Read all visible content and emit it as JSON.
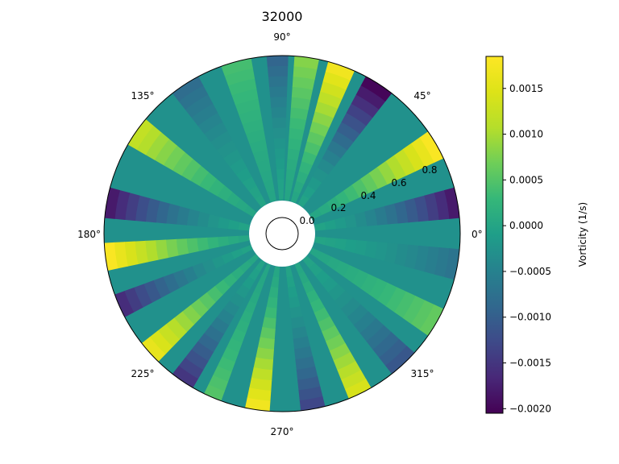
{
  "chart_data": {
    "type": "polar-heatmap",
    "title": "32000",
    "angle_ticks": [
      "0°",
      "45°",
      "90°",
      "135°",
      "180°",
      "225°",
      "270°",
      "315°"
    ],
    "radial_ticks": [
      "0.0",
      "0.2",
      "0.4",
      "0.6",
      "0.8"
    ],
    "rlim": [
      0.0,
      0.85
    ],
    "inner_hole_radius": 0.16,
    "colorbar": {
      "label": "Vorticity (1/s)",
      "ticks": [
        "0.0015",
        "0.0010",
        "0.0005",
        "0.0000",
        "−0.0005",
        "−0.0010",
        "−0.0015",
        "−0.0020"
      ],
      "tick_values": [
        0.0015,
        0.001,
        0.0005,
        0.0,
        -0.0005,
        -0.001,
        -0.0015,
        -0.002
      ],
      "vmin": -0.00205,
      "vmax": 0.00185,
      "colormap": "viridis"
    },
    "sectors": [
      {
        "start": 5,
        "end": 15,
        "value": -0.0018
      },
      {
        "start": 25,
        "end": 35,
        "value": 0.0018
      },
      {
        "start": 52,
        "end": 62,
        "value": -0.002
      },
      {
        "start": 66,
        "end": 75,
        "value": 0.0017
      },
      {
        "start": 78,
        "end": 86,
        "value": 0.0008
      },
      {
        "start": 88,
        "end": 95,
        "value": -0.0009
      },
      {
        "start": 100,
        "end": 110,
        "value": 0.0004
      },
      {
        "start": 118,
        "end": 128,
        "value": -0.0008
      },
      {
        "start": 140,
        "end": 150,
        "value": 0.0012
      },
      {
        "start": 165,
        "end": 175,
        "value": -0.0018
      },
      {
        "start": 183,
        "end": 192,
        "value": 0.0018
      },
      {
        "start": 200,
        "end": 208,
        "value": -0.0016
      },
      {
        "start": 218,
        "end": 226,
        "value": 0.0016
      },
      {
        "start": 232,
        "end": 240,
        "value": -0.0015
      },
      {
        "start": 244,
        "end": 250,
        "value": 0.0005
      },
      {
        "start": 258,
        "end": 266,
        "value": 0.0017
      },
      {
        "start": 276,
        "end": 284,
        "value": -0.0013
      },
      {
        "start": 292,
        "end": 300,
        "value": 0.0014
      },
      {
        "start": 308,
        "end": 318,
        "value": -0.0011
      },
      {
        "start": 325,
        "end": 335,
        "value": 0.0006
      },
      {
        "start": 345,
        "end": 355,
        "value": -0.0007
      }
    ]
  }
}
